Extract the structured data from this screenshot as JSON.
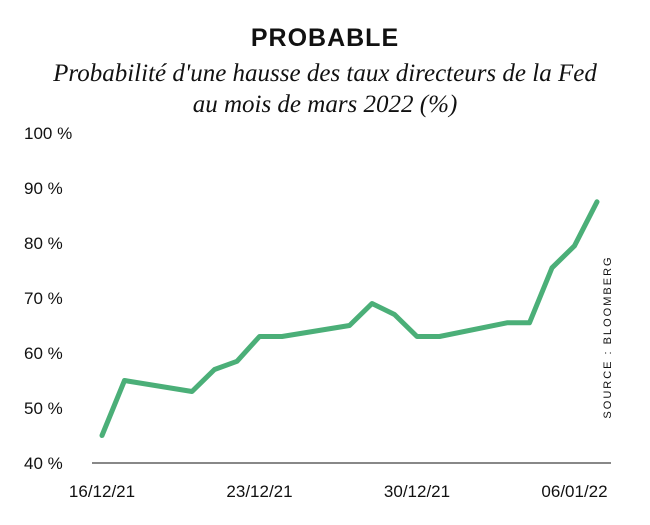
{
  "chart_data": {
    "type": "line",
    "title": "PROBABLE",
    "subtitle": "Probabilité d'une hausse des taux directeurs de la Fed au mois de mars 2022 (%)",
    "xlabel": "",
    "ylabel": "",
    "x_tick_labels": [
      "16/12/21",
      "23/12/21",
      "30/12/21",
      "06/01/22"
    ],
    "y_tick_labels": [
      "40 %",
      "50 %",
      "60 %",
      "70 %",
      "80 %",
      "90 %",
      "100 %"
    ],
    "ylim": [
      40,
      100
    ],
    "xlim": [
      "2021-12-16",
      "2022-01-07"
    ],
    "grid": false,
    "series": [
      {
        "color": "#4baf78",
        "x": [
          "2021-12-16",
          "2021-12-17",
          "2021-12-20",
          "2021-12-21",
          "2021-12-22",
          "2021-12-23",
          "2021-12-24",
          "2021-12-27",
          "2021-12-28",
          "2021-12-29",
          "2021-12-30",
          "2021-12-31",
          "2022-01-03",
          "2022-01-04",
          "2022-01-05",
          "2022-01-06",
          "2022-01-07"
        ],
        "values": [
          45,
          55,
          53,
          57,
          58.5,
          63,
          63,
          65,
          69,
          67,
          63,
          63,
          65.5,
          65.5,
          75.5,
          79.5,
          87.5
        ]
      }
    ],
    "source": "SOURCE : BLOOMBERG"
  }
}
